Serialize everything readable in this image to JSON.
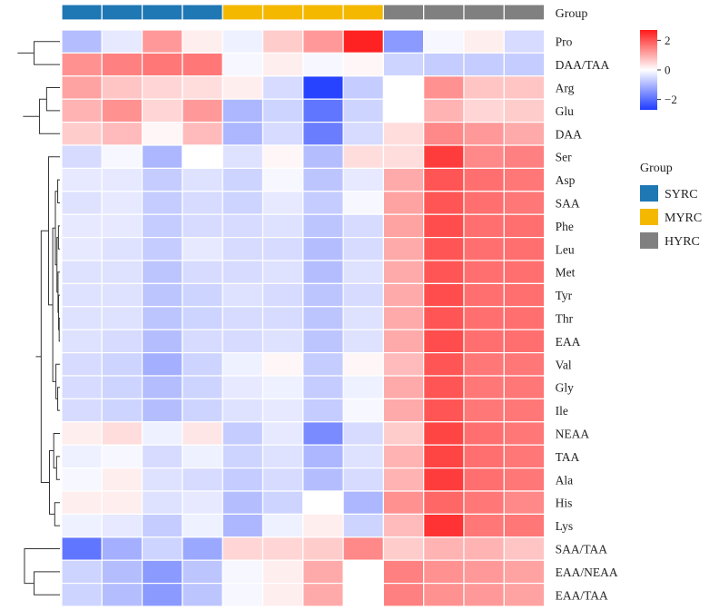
{
  "chart_data": {
    "type": "heatmap",
    "title": "",
    "group_annotation_label": "Group",
    "groups": [
      {
        "name": "SYRC",
        "color": "#1f77b4"
      },
      {
        "name": "MYRC",
        "color": "#f5b800"
      },
      {
        "name": "HYRC",
        "color": "#808080"
      }
    ],
    "column_groups": [
      "SYRC",
      "SYRC",
      "SYRC",
      "SYRC",
      "MYRC",
      "MYRC",
      "MYRC",
      "MYRC",
      "HYRC",
      "HYRC",
      "HYRC",
      "HYRC"
    ],
    "rows": [
      "Pro",
      "DAA/TAA",
      "Arg",
      "Glu",
      "DAA",
      "Ser",
      "Asp",
      "SAA",
      "Phe",
      "Leu",
      "Met",
      "Tyr",
      "Thr",
      "EAA",
      "Val",
      "Gly",
      "Ile",
      "NEAA",
      "TAA",
      "Ala",
      "His",
      "Lys",
      "SAA/TAA",
      "EAA/NEAA",
      "EAA/TAA"
    ],
    "values": [
      [
        -0.9,
        -0.3,
        1.2,
        0.2,
        -0.2,
        0.6,
        1.2,
        2.6,
        -1.4,
        -0.1,
        0.2,
        -0.5
      ],
      [
        1.3,
        1.5,
        1.6,
        1.6,
        -0.1,
        0.2,
        -0.1,
        0.1,
        -0.6,
        -0.7,
        -0.7,
        -0.7
      ],
      [
        1.1,
        0.7,
        0.5,
        0.4,
        0.2,
        -0.5,
        -2.6,
        -0.7,
        0.0,
        1.3,
        0.7,
        0.7
      ],
      [
        0.9,
        1.3,
        0.5,
        1.2,
        -1.0,
        -0.6,
        -1.9,
        -0.6,
        0.0,
        0.9,
        0.5,
        0.6
      ],
      [
        0.6,
        0.8,
        0.1,
        0.8,
        -1.0,
        -0.5,
        -1.8,
        -0.5,
        0.4,
        1.4,
        1.2,
        1.0
      ],
      [
        -0.5,
        -0.1,
        -1.0,
        0.0,
        -0.4,
        0.1,
        -0.9,
        0.4,
        0.4,
        2.3,
        1.4,
        1.5
      ],
      [
        -0.3,
        -0.3,
        -0.7,
        -0.4,
        -0.6,
        -0.1,
        -0.8,
        -0.3,
        1.0,
        2.0,
        1.7,
        1.6
      ],
      [
        -0.4,
        -0.3,
        -0.7,
        -0.5,
        -0.6,
        -0.3,
        -0.7,
        -0.1,
        1.1,
        2.0,
        1.7,
        1.6
      ],
      [
        -0.3,
        -0.3,
        -0.7,
        -0.5,
        -0.5,
        -0.4,
        -0.8,
        -0.5,
        1.1,
        2.1,
        1.7,
        1.7
      ],
      [
        -0.3,
        -0.4,
        -0.7,
        -0.3,
        -0.5,
        -0.5,
        -0.9,
        -0.5,
        1.0,
        2.0,
        1.7,
        1.7
      ],
      [
        -0.4,
        -0.4,
        -0.8,
        -0.5,
        -0.5,
        -0.4,
        -0.9,
        -0.4,
        1.0,
        2.0,
        1.7,
        1.7
      ],
      [
        -0.4,
        -0.4,
        -0.8,
        -0.6,
        -0.4,
        -0.5,
        -0.8,
        -0.5,
        1.0,
        2.1,
        1.7,
        1.7
      ],
      [
        -0.4,
        -0.4,
        -0.8,
        -0.6,
        -0.5,
        -0.5,
        -0.8,
        -0.4,
        1.0,
        2.0,
        1.7,
        1.7
      ],
      [
        -0.4,
        -0.5,
        -0.9,
        -0.5,
        -0.5,
        -0.4,
        -0.8,
        -0.4,
        1.0,
        2.1,
        1.7,
        1.7
      ],
      [
        -0.5,
        -0.6,
        -1.1,
        -0.6,
        -0.2,
        0.1,
        -0.7,
        0.1,
        0.8,
        2.0,
        1.6,
        1.6
      ],
      [
        -0.5,
        -0.6,
        -0.9,
        -0.6,
        -0.3,
        -0.2,
        -0.7,
        -0.2,
        1.0,
        2.0,
        1.6,
        1.6
      ],
      [
        -0.5,
        -0.6,
        -0.9,
        -0.6,
        -0.4,
        -0.3,
        -0.7,
        -0.1,
        1.0,
        2.0,
        1.6,
        1.6
      ],
      [
        0.2,
        0.4,
        -0.2,
        0.3,
        -0.7,
        -0.3,
        -1.6,
        -0.5,
        0.6,
        2.2,
        1.7,
        1.6
      ],
      [
        -0.2,
        -0.1,
        -0.5,
        -0.2,
        -0.6,
        -0.4,
        -1.0,
        -0.4,
        0.9,
        2.2,
        1.7,
        1.6
      ],
      [
        -0.1,
        0.2,
        -0.4,
        -0.5,
        -0.7,
        -0.5,
        -0.9,
        -0.5,
        0.9,
        2.3,
        1.7,
        1.6
      ],
      [
        0.2,
        0.2,
        -0.4,
        -0.3,
        -0.9,
        -0.6,
        0.0,
        -1.0,
        1.3,
        1.8,
        1.6,
        1.4
      ],
      [
        -0.2,
        -0.3,
        -0.7,
        -0.2,
        -1.0,
        -0.2,
        0.2,
        -0.6,
        0.8,
        2.4,
        1.6,
        1.6
      ],
      [
        -1.9,
        -1.1,
        -0.6,
        -1.2,
        0.5,
        0.5,
        0.6,
        1.4,
        0.6,
        0.9,
        0.9,
        0.7
      ],
      [
        -0.6,
        -0.9,
        -1.4,
        -0.8,
        -0.1,
        0.2,
        1.0,
        0.0,
        1.5,
        1.3,
        1.2,
        1.1
      ],
      [
        -0.6,
        -0.9,
        -1.4,
        -0.8,
        -0.1,
        0.2,
        1.0,
        0.0,
        1.5,
        1.3,
        1.2,
        1.1
      ]
    ],
    "color_scale": {
      "min": -2.7,
      "max": 2.7,
      "low": "#1f3cff",
      "mid": "#ffffff",
      "high": "#ff1a1a"
    },
    "colorbar_ticks": [
      2,
      0,
      -2
    ],
    "colorbar_tick_labels": [
      "2",
      "0",
      "−2"
    ],
    "legend_title": "Group"
  }
}
